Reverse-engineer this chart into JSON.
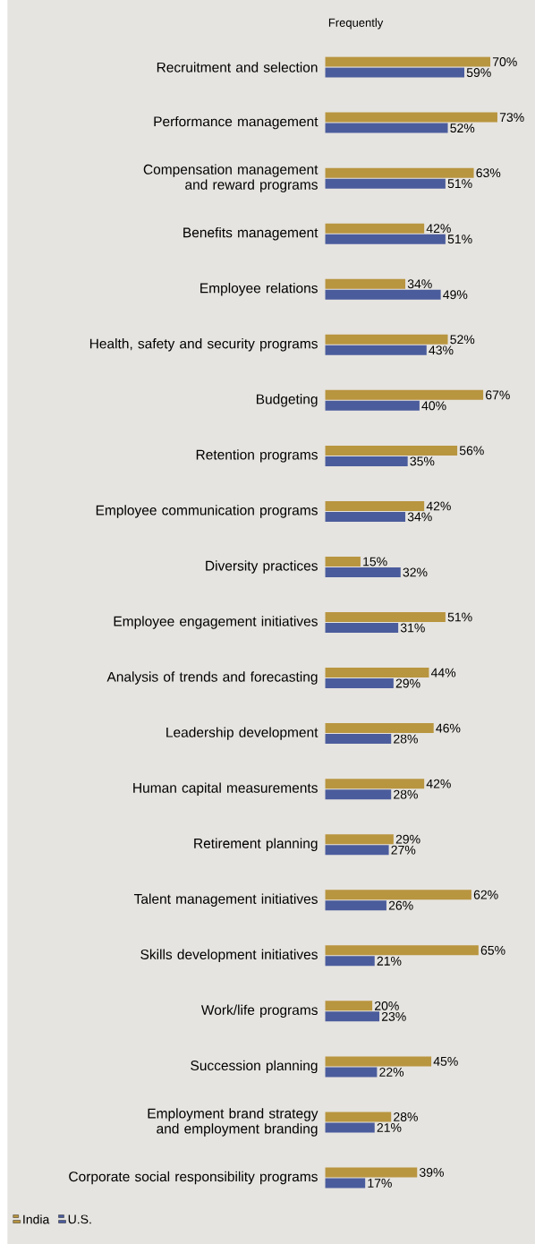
{
  "chart_data": {
    "type": "bar",
    "orientation": "horizontal",
    "title": "Frequently",
    "categories": [
      "Recruitment and selection",
      "Performance management",
      "Compensation management and reward programs",
      "Benefits management",
      "Employee relations",
      "Health, safety and security programs",
      "Budgeting",
      "Retention programs",
      "Employee communication programs",
      "Diversity practices",
      "Employee engagement initiatives",
      "Analysis of trends and forecasting",
      "Leadership development",
      "Human capital measurements",
      "Retirement planning",
      "Talent management initiatives",
      "Skills development initiatives",
      "Work/life programs",
      "Succession planning",
      "Employment brand strategy and employment branding",
      "Corporate social responsibility programs"
    ],
    "series": [
      {
        "name": "India",
        "color": "#b8953f",
        "values": [
          70,
          73,
          63,
          42,
          34,
          52,
          67,
          56,
          42,
          15,
          51,
          44,
          46,
          42,
          29,
          62,
          65,
          20,
          45,
          28,
          39
        ],
        "value_labels": [
          "70%",
          "73%",
          "63%",
          "42%",
          "34%",
          "52%",
          "67%",
          "56%",
          "42%",
          "15%",
          "51%",
          "44%",
          "46%",
          "42%",
          "29%",
          "62%",
          "65%",
          "20%",
          "45%",
          "28%",
          "39%"
        ]
      },
      {
        "name": "U.S.",
        "color": "#4b5c9c",
        "values": [
          59,
          52,
          51,
          51,
          49,
          43,
          40,
          35,
          34,
          32,
          31,
          29,
          28,
          28,
          27,
          26,
          21,
          23,
          22,
          21,
          17
        ],
        "value_labels": [
          "59%",
          "52%",
          "51%",
          "51%",
          "49%",
          "43%",
          "40%",
          "35%",
          "34%",
          "32%",
          "31%",
          "29%",
          "28%",
          "28%",
          "27%",
          "26%",
          "21%",
          "23%",
          "22%",
          "21%",
          "17%"
        ]
      }
    ],
    "legend": "bottom left"
  }
}
